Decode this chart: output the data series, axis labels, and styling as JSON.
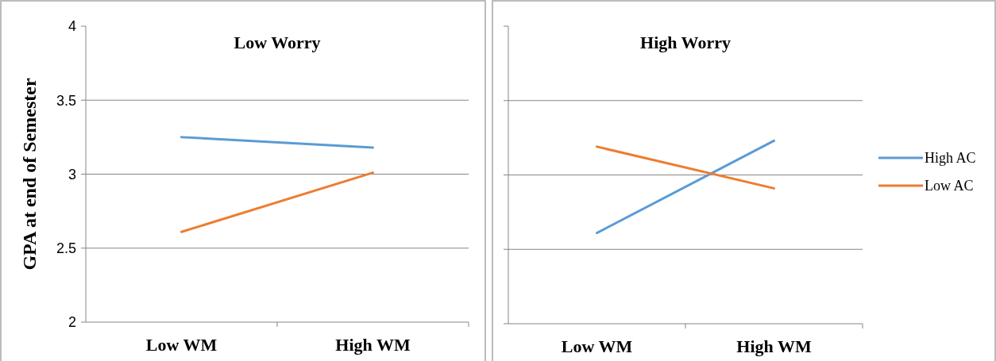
{
  "chart_data": [
    {
      "type": "line",
      "title": "Low Worry",
      "ylabel": "GPA at end of Semester",
      "categories": [
        "Low WM",
        "High WM"
      ],
      "series": [
        {
          "color": "#5b9bd5",
          "values": [
            3.25,
            3.18
          ]
        },
        {
          "color": "#ed7d31",
          "values": [
            2.61,
            3.01
          ]
        }
      ],
      "ylim": [
        2,
        4
      ],
      "yticks": [
        2,
        2.5,
        3,
        3.5,
        4
      ],
      "grid": "y",
      "legend": false,
      "marker": "none"
    },
    {
      "type": "line",
      "title": "High Worry",
      "categories": [
        "Low WM",
        "High WM"
      ],
      "series": [
        {
          "name": "High AC",
          "color": "#5b9bd5",
          "values": [
            2.61,
            3.23
          ]
        },
        {
          "name": "Low AC",
          "color": "#ed7d31",
          "values": [
            3.19,
            2.91
          ]
        }
      ],
      "ylim": [
        2,
        4
      ],
      "yticks": [
        2,
        2.5,
        3,
        3.5,
        4
      ],
      "grid": "y",
      "legend": "right",
      "tick_labels": "x",
      "marker": "none"
    }
  ]
}
